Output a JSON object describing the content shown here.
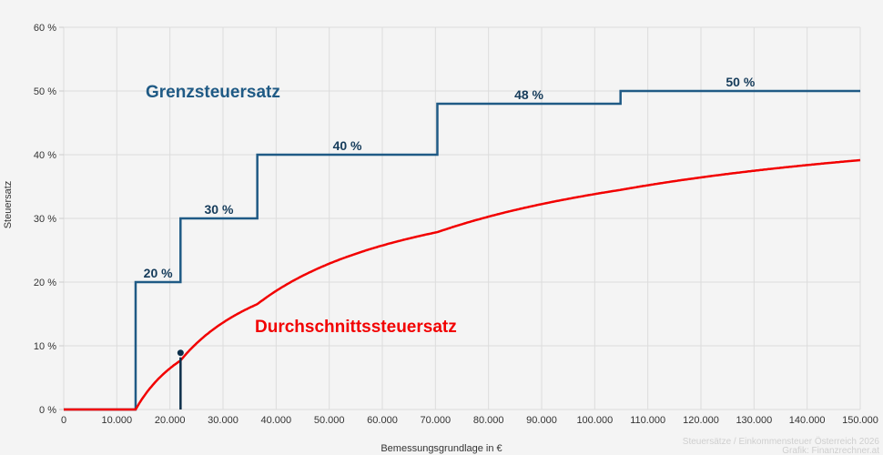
{
  "chart_data": {
    "type": "line",
    "xlabel": "Bemessungsgrundlage in €",
    "ylabel": "Steuersatz",
    "xlim": [
      0,
      150000
    ],
    "ylim": [
      0,
      60
    ],
    "x_ticks": [
      "0",
      "10.000",
      "20.000",
      "30.000",
      "40.000",
      "50.000",
      "60.000",
      "70.000",
      "80.000",
      "90.000",
      "100.000",
      "110.000",
      "120.000",
      "130.000",
      "140.000",
      "150.000"
    ],
    "y_ticks": [
      "0 %",
      "10 %",
      "20 %",
      "30 %",
      "40 %",
      "50 %",
      "60 %"
    ],
    "grid": true,
    "brackets": [
      {
        "from": 0,
        "to": 13539,
        "rate": 0
      },
      {
        "from": 13539,
        "to": 21992,
        "rate": 20,
        "label": "20 %"
      },
      {
        "from": 21992,
        "to": 36458,
        "rate": 30,
        "label": "30 %"
      },
      {
        "from": 36458,
        "to": 70365,
        "rate": 40,
        "label": "40 %"
      },
      {
        "from": 70365,
        "to": 104859,
        "rate": 48,
        "label": "48 %"
      },
      {
        "from": 104859,
        "to": 150000,
        "rate": 50,
        "label": "50 %"
      }
    ],
    "series": [
      {
        "name": "Grenzsteuersatz",
        "color": "#1f5a85",
        "kind": "step"
      },
      {
        "name": "Durchschnittssteuersatz",
        "color": "#f20000",
        "kind": "line",
        "x": [
          0,
          10000,
          20000,
          30000,
          40000,
          50000,
          60000,
          70000,
          80000,
          90000,
          100000,
          110000,
          120000,
          130000,
          140000,
          150000
        ],
        "y": [
          0,
          0,
          6.46,
          13.64,
          18.62,
          22.89,
          25.75,
          27.78,
          30.27,
          32.24,
          33.82,
          35.2,
          36.43,
          37.48,
          38.37,
          39.15
        ]
      }
    ],
    "marker": {
      "x": 22000,
      "y": 8.9,
      "color": "#0d2f4a"
    },
    "credit": [
      "Steuersätze / Einkommensteuer Österreich 2026",
      "Grafik: Finanzrechner.at"
    ]
  }
}
